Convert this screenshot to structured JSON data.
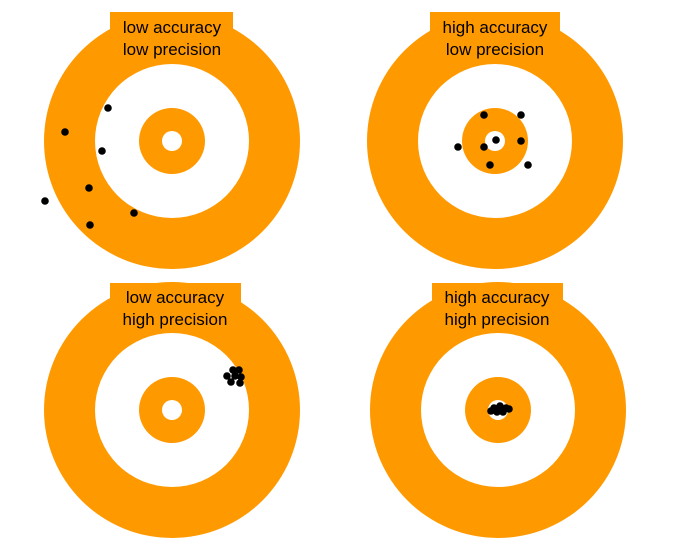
{
  "colors": {
    "target_orange": "#FF9900",
    "target_white": "#FFFFFF",
    "dot": "#000000",
    "label_text": "#000000"
  },
  "panels": [
    {
      "id": "low-accuracy-low-precision",
      "label_line1": "low accuracy",
      "label_line2": "low precision"
    },
    {
      "id": "high-accuracy-low-precision",
      "label_line1": "high accuracy",
      "label_line2": "low precision"
    },
    {
      "id": "low-accuracy-high-precision",
      "label_line1": "low accuracy",
      "label_line2": "high precision"
    },
    {
      "id": "high-accuracy-high-precision",
      "label_line1": "high accuracy",
      "label_line2": "high precision"
    }
  ]
}
